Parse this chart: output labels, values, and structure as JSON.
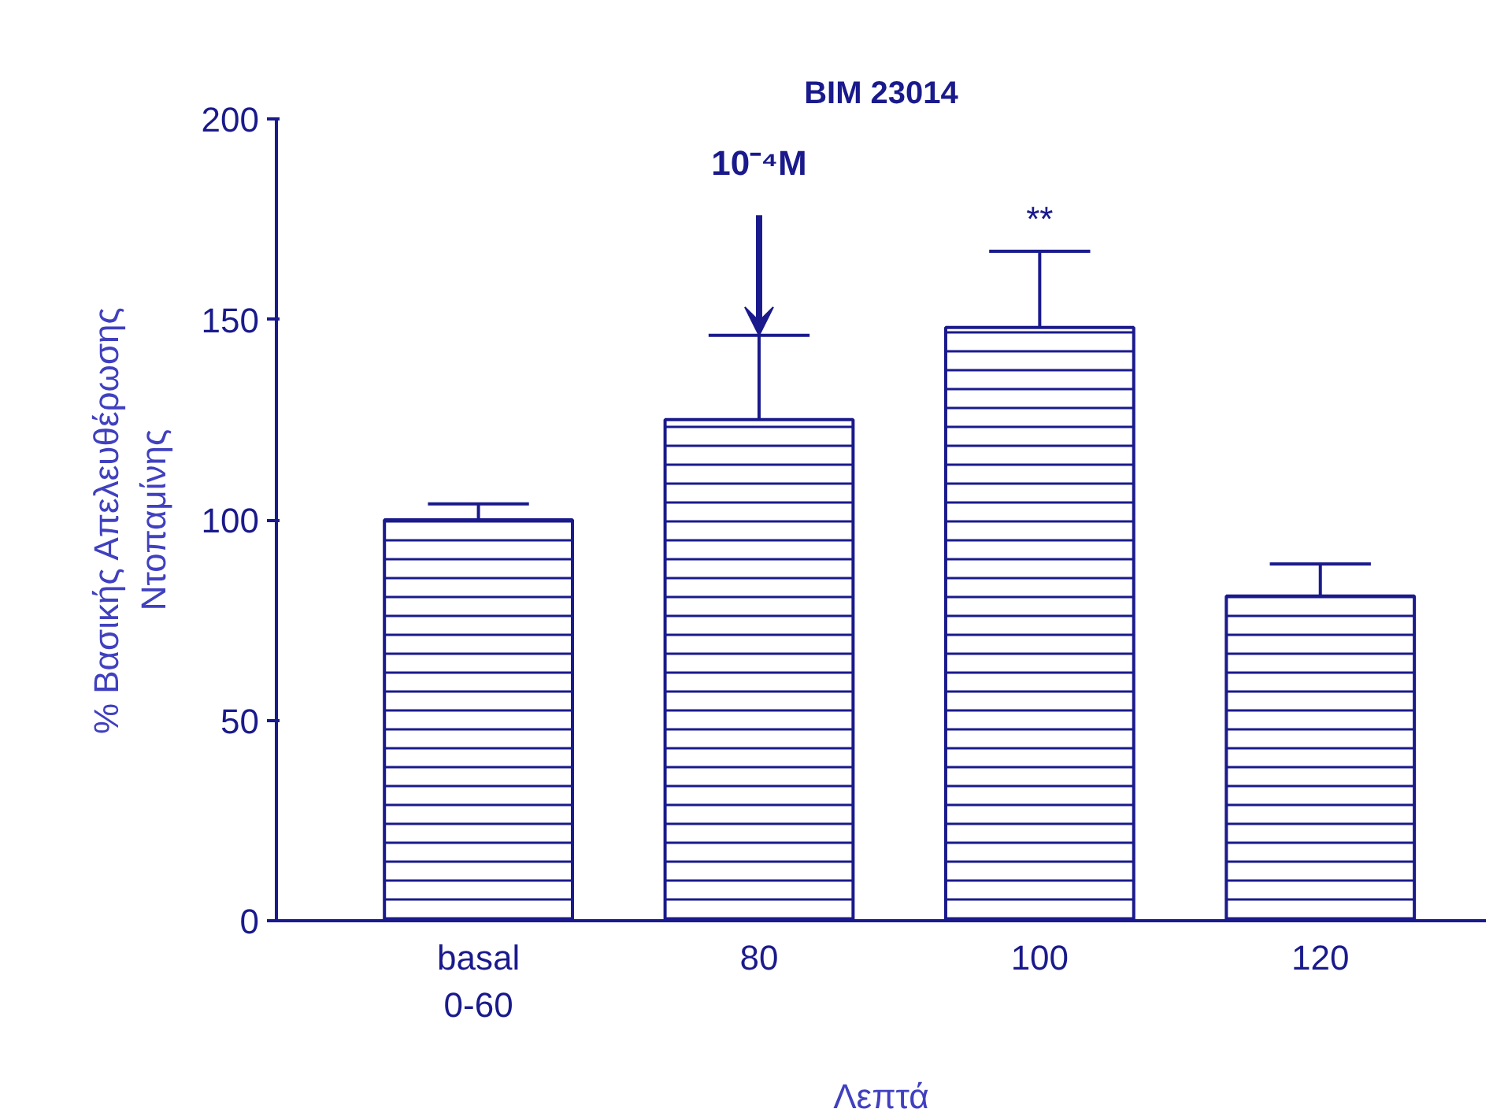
{
  "chart_data": {
    "type": "bar",
    "title": "BIM 23014",
    "xlabel": "Λεπτά",
    "ylabel": "% Βασικής Απελευθέρωσης\nΝτοπαμίνης",
    "categories": [
      "basal\n0-60",
      "80",
      "100",
      "120"
    ],
    "values": [
      100,
      125,
      148,
      81
    ],
    "errors": [
      [
        100,
        104
      ],
      [
        125,
        146
      ],
      [
        148,
        167
      ],
      [
        81,
        89
      ]
    ],
    "color": "#1a1a8c",
    "ylim": [
      0,
      200
    ],
    "yticks": [
      0,
      50,
      100,
      150,
      200
    ],
    "grid": false,
    "annotations": [
      {
        "text": "10⁻⁴M",
        "x": "80",
        "y": 146
      },
      {
        "text": "**",
        "x": "100",
        "y": 167
      }
    ]
  }
}
